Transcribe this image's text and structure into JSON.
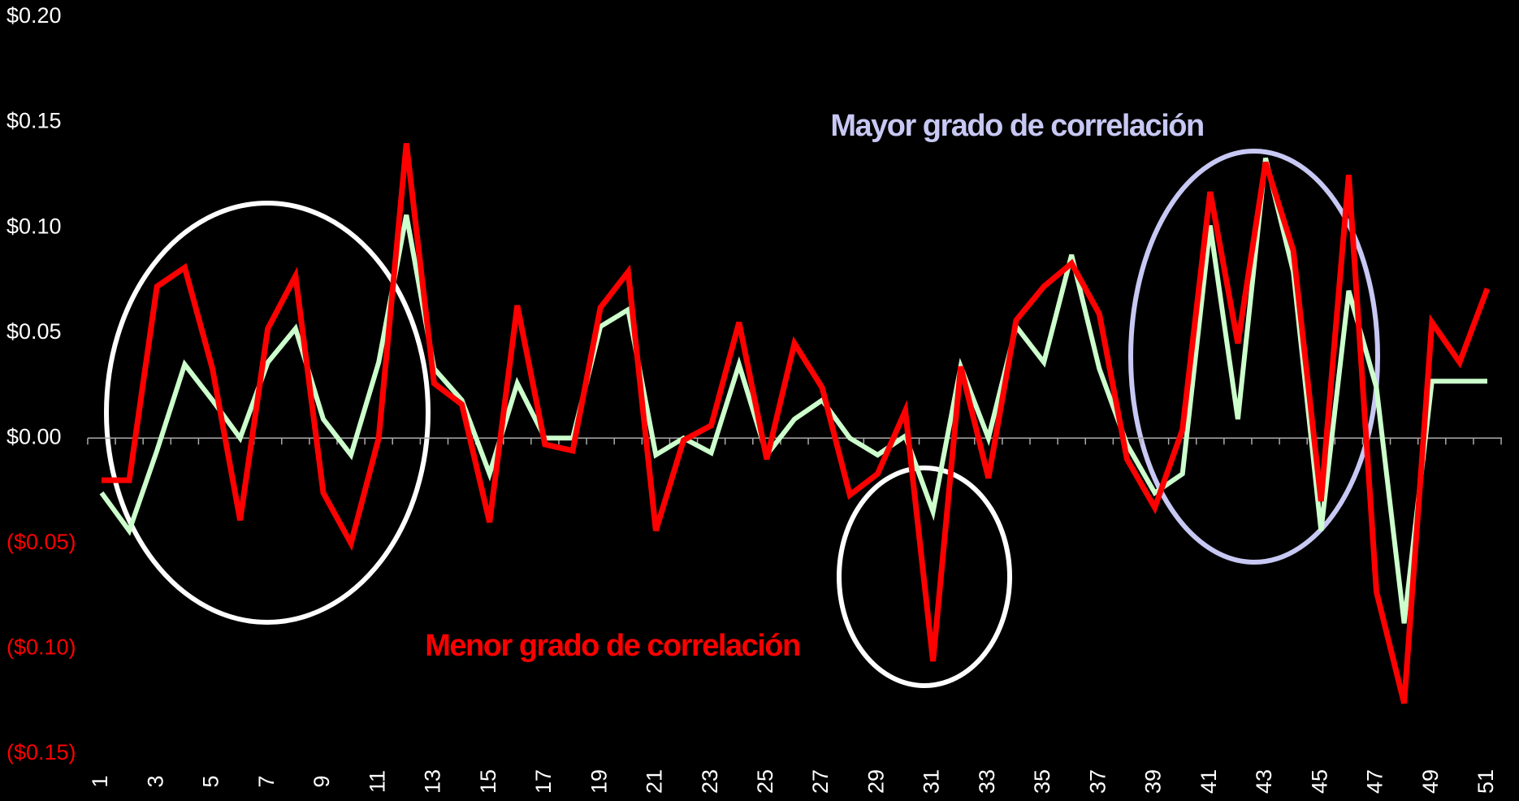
{
  "chart_data": {
    "type": "line",
    "categories": [
      1,
      null,
      3,
      null,
      5,
      null,
      7,
      null,
      9,
      null,
      11,
      null,
      13,
      null,
      15,
      null,
      17,
      null,
      19,
      null,
      21,
      null,
      23,
      null,
      25,
      null,
      27,
      null,
      29,
      null,
      31,
      null,
      33,
      null,
      35,
      null,
      37,
      null,
      39,
      null,
      41,
      null,
      43,
      null,
      45,
      null,
      47,
      null,
      49,
      null,
      51
    ],
    "series": [
      {
        "color": "#ccffcc",
        "values": [
          -0.026,
          -0.044,
          -0.006,
          0.035,
          0.018,
          0.0,
          0.036,
          0.052,
          0.009,
          -0.008,
          0.036,
          0.106,
          0.033,
          0.018,
          -0.017,
          0.026,
          0.0,
          0.0,
          0.053,
          0.061,
          -0.008,
          0.0,
          -0.007,
          0.035,
          -0.008,
          0.009,
          0.018,
          0.0,
          -0.008,
          0.001,
          -0.035,
          0.034,
          0.0,
          0.053,
          0.036,
          0.087,
          0.033,
          -0.003,
          -0.026,
          -0.017,
          0.101,
          0.009,
          0.133,
          0.079,
          -0.044,
          0.07,
          0.024,
          -0.088,
          0.027,
          0.027,
          0.027
        ]
      },
      {
        "color": "#ff0000",
        "values": [
          -0.02,
          -0.02,
          0.072,
          0.081,
          0.033,
          -0.039,
          0.052,
          0.077,
          -0.026,
          -0.05,
          0.0,
          0.14,
          0.026,
          0.016,
          -0.04,
          0.063,
          -0.003,
          -0.006,
          0.062,
          0.079,
          -0.044,
          -0.001,
          0.006,
          0.055,
          -0.01,
          0.045,
          0.024,
          -0.027,
          -0.017,
          0.013,
          -0.106,
          0.034,
          -0.019,
          0.056,
          0.072,
          0.083,
          0.059,
          -0.01,
          -0.033,
          0.004,
          0.117,
          0.045,
          0.131,
          0.089,
          -0.03,
          0.125,
          -0.073,
          -0.126,
          0.055,
          0.036,
          0.071
        ]
      }
    ],
    "ylim": [
      -0.15,
      0.2
    ],
    "yticks": [
      {
        "value": 0.2,
        "label": "$0.20"
      },
      {
        "value": 0.15,
        "label": "$0.15"
      },
      {
        "value": 0.1,
        "label": "$0.10"
      },
      {
        "value": 0.05,
        "label": "$0.05"
      },
      {
        "value": 0,
        "label": "$0.00"
      },
      {
        "value": -0.05,
        "label": "($0.05)"
      },
      {
        "value": -0.1,
        "label": "($0.10)"
      },
      {
        "value": -0.15,
        "label": "($0.15)"
      }
    ],
    "negative_tick_color": "#ff0000",
    "annotations": [
      {
        "text": "Mayor grado de correlación",
        "color": "#c8c8f4"
      },
      {
        "text": "Menor grado de correlación",
        "color": "#ff0000"
      }
    ]
  }
}
